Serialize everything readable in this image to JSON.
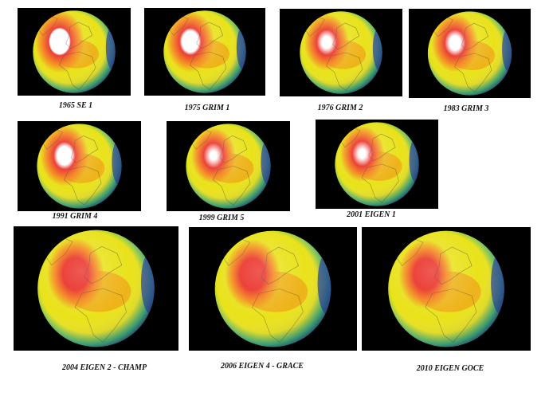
{
  "figure": {
    "panels": [
      {
        "caption": "1965 SE 1",
        "intensity": 1.0
      },
      {
        "caption": "1975 GRIM  1",
        "intensity": 0.92
      },
      {
        "caption": "1976 GRIM  2",
        "intensity": 0.7
      },
      {
        "caption": "1983 GRIM  3",
        "intensity": 0.75
      },
      {
        "caption": "1991 GRIM  4",
        "intensity": 0.85
      },
      {
        "caption": "1999 GRIM  5",
        "intensity": 0.6
      },
      {
        "caption": "2001 EIGEN  1",
        "intensity": 0.62
      },
      {
        "caption": "2004 EIGEN  2 - CHAMP",
        "intensity": 0.4
      },
      {
        "caption": "2006 EIGEN  4 - GRACE",
        "intensity": 0.35
      },
      {
        "caption": "2010 EIGEN  GOCE",
        "intensity": 0.3
      }
    ],
    "colors": {
      "background": "#000000",
      "high": "#ffffff",
      "red": "#e8231a",
      "orange": "#f57a16",
      "yellow": "#e9e21a",
      "green": "#34b27a",
      "blue": "#1c3c9c"
    }
  }
}
